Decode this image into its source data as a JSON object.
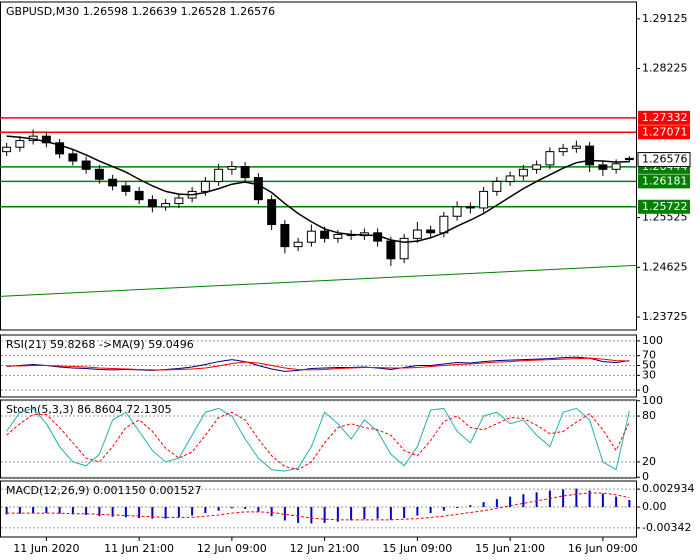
{
  "chart_data": [
    {
      "type": "candlestick",
      "title": "GBPUSD,M30  1.26598 1.26639 1.26528 1.26576",
      "categories": [
        null,
        null,
        null,
        "11 Jun 2020",
        null,
        null,
        null,
        null,
        null,
        null,
        "11 Jun 21:00",
        null,
        null,
        null,
        null,
        null,
        null,
        "12 Jun 09:00",
        null,
        null,
        null,
        null,
        null,
        null,
        "12 Jun 21:00",
        null,
        null,
        null,
        null,
        null,
        null,
        "15 Jun 09:00",
        null,
        null,
        null,
        null,
        null,
        null,
        "15 Jun 21:00",
        null,
        null,
        null,
        null,
        null,
        null,
        "16 Jun 09:00",
        null,
        null
      ],
      "open": [
        1.2672,
        1.268,
        1.2692,
        1.27,
        1.2688,
        1.2668,
        1.2655,
        1.264,
        1.2622,
        1.261,
        1.26,
        1.2585,
        1.2572,
        1.2578,
        1.2588,
        1.26,
        1.2618,
        1.264,
        1.2645,
        1.2625,
        1.2585,
        1.254,
        1.25,
        1.2508,
        1.2528,
        1.2515,
        1.2522,
        1.252,
        1.2525,
        1.251,
        1.2478,
        1.2515,
        1.253,
        1.2525,
        1.2555,
        1.2572,
        1.257,
        1.26,
        1.2618,
        1.2628,
        1.264,
        1.2648,
        1.2672,
        1.2678,
        1.2682,
        1.2648,
        1.264,
        1.26598
      ],
      "high": [
        1.2688,
        1.27,
        1.2712,
        1.2708,
        1.2695,
        1.2676,
        1.2663,
        1.2648,
        1.263,
        1.2618,
        1.2608,
        1.2593,
        1.2586,
        1.2596,
        1.2608,
        1.2626,
        1.265,
        1.2655,
        1.2653,
        1.2633,
        1.2593,
        1.2548,
        1.2516,
        1.254,
        1.2536,
        1.253,
        1.253,
        1.2533,
        1.2533,
        1.2518,
        1.2523,
        1.2545,
        1.2538,
        1.2563,
        1.2582,
        1.258,
        1.2608,
        1.2626,
        1.2636,
        1.2648,
        1.2656,
        1.268,
        1.2686,
        1.2692,
        1.269,
        1.2656,
        1.2658,
        1.26639
      ],
      "low": [
        1.2664,
        1.2672,
        1.2685,
        1.268,
        1.266,
        1.2647,
        1.2632,
        1.2614,
        1.2602,
        1.2592,
        1.2577,
        1.2562,
        1.2565,
        1.257,
        1.258,
        1.2592,
        1.261,
        1.263,
        1.2617,
        1.2577,
        1.253,
        1.2488,
        1.2492,
        1.25,
        1.2507,
        1.2507,
        1.2512,
        1.2512,
        1.25,
        1.2465,
        1.247,
        1.2507,
        1.2515,
        1.2517,
        1.2547,
        1.256,
        1.2562,
        1.2592,
        1.261,
        1.262,
        1.2632,
        1.264,
        1.2664,
        1.267,
        1.2635,
        1.2628,
        1.2632,
        1.26528
      ],
      "close": [
        1.268,
        1.2692,
        1.27,
        1.2688,
        1.2668,
        1.2655,
        1.264,
        1.2622,
        1.261,
        1.26,
        1.2585,
        1.2572,
        1.2578,
        1.2588,
        1.26,
        1.2618,
        1.264,
        1.2645,
        1.2625,
        1.2585,
        1.254,
        1.25,
        1.2508,
        1.2528,
        1.2515,
        1.2522,
        1.252,
        1.2525,
        1.251,
        1.2478,
        1.2515,
        1.253,
        1.2525,
        1.2555,
        1.2572,
        1.257,
        1.26,
        1.2618,
        1.2628,
        1.264,
        1.2648,
        1.2672,
        1.2678,
        1.2682,
        1.2648,
        1.264,
        1.265,
        1.26576
      ],
      "ma": {
        "color": "#000000",
        "values": [
          1.27,
          1.2698,
          1.2695,
          1.269,
          1.2684,
          1.2676,
          1.2666,
          1.2655,
          1.2645,
          1.2635,
          1.2622,
          1.261,
          1.26,
          1.2595,
          1.2594,
          1.2598,
          1.2605,
          1.2613,
          1.2617,
          1.2612,
          1.2598,
          1.2578,
          1.256,
          1.2545,
          1.2532,
          1.2525,
          1.2522,
          1.2521,
          1.252,
          1.2512,
          1.2508,
          1.251,
          1.2516,
          1.2525,
          1.2537,
          1.2548,
          1.256,
          1.2575,
          1.259,
          1.2605,
          1.2618,
          1.263,
          1.2642,
          1.2652,
          1.2656,
          1.2655,
          1.2653,
          1.2654
        ]
      },
      "levels": [
        {
          "value": 1.27332,
          "color": "#ff0000"
        },
        {
          "value": 1.27071,
          "color": "#ff0000"
        },
        {
          "value": 1.26444,
          "color": "#008000"
        },
        {
          "value": 1.26181,
          "color": "#008000"
        },
        {
          "value": 1.25722,
          "color": "#008000"
        }
      ],
      "trendline": {
        "values": [
          1.241,
          1.2466
        ],
        "color": "#008000"
      },
      "ylim": [
        1.2349,
        1.2943
      ],
      "yticks": [
        1.29125,
        1.28225,
        1.25525,
        1.24625,
        1.23725
      ]
    },
    {
      "type": "line",
      "title": "RSI(21) 59.8268 ->MA(9) 59.0496",
      "series": [
        {
          "color": "#000080",
          "values": [
            48,
            50,
            52,
            50,
            47,
            45,
            44,
            42,
            41,
            42,
            41,
            40,
            42,
            44,
            47,
            52,
            58,
            62,
            58,
            50,
            43,
            38,
            40,
            44,
            45,
            46,
            46,
            47,
            45,
            42,
            46,
            50,
            50,
            53,
            56,
            55,
            58,
            60,
            61,
            62,
            63,
            64,
            66,
            67,
            65,
            58,
            56,
            59.8268
          ]
        },
        {
          "color": "#ff0000",
          "values": [
            49,
            49,
            50,
            50,
            49,
            48,
            47,
            45,
            44,
            43,
            42,
            41,
            41,
            42,
            43,
            45,
            49,
            54,
            57,
            55,
            50,
            45,
            42,
            41,
            42,
            44,
            45,
            46,
            46,
            45,
            45,
            46,
            48,
            50,
            52,
            53,
            55,
            57,
            58,
            60,
            61,
            62,
            63,
            64,
            65,
            63,
            60,
            59.0496
          ]
        }
      ],
      "ylim": [
        -14,
        112
      ],
      "yticks": [
        100,
        70,
        50,
        30,
        0
      ]
    },
    {
      "type": "line",
      "title": "Stoch(5,3,3) 86.8604 72.1305",
      "series": [
        {
          "color": "#20b2aa",
          "values": [
            60,
            85,
            90,
            70,
            40,
            20,
            15,
            30,
            75,
            85,
            60,
            35,
            20,
            25,
            55,
            85,
            90,
            80,
            50,
            25,
            10,
            8,
            12,
            40,
            85,
            70,
            50,
            75,
            60,
            30,
            15,
            40,
            88,
            90,
            60,
            45,
            80,
            85,
            70,
            75,
            55,
            40,
            85,
            90,
            75,
            20,
            10,
            86.8604
          ]
        },
        {
          "color": "#ff0000",
          "dash": true,
          "values": [
            55,
            70,
            82,
            82,
            65,
            45,
            25,
            20,
            40,
            65,
            75,
            60,
            38,
            25,
            33,
            55,
            78,
            85,
            75,
            50,
            28,
            14,
            10,
            20,
            45,
            65,
            70,
            65,
            62,
            55,
            35,
            28,
            48,
            73,
            80,
            65,
            62,
            70,
            78,
            77,
            68,
            57,
            60,
            72,
            83,
            62,
            35,
            72.1305
          ]
        }
      ],
      "ylim": [
        -1,
        101
      ],
      "yticks": [
        100,
        80,
        20,
        0
      ]
    },
    {
      "type": "macd",
      "title": "MACD(12,26,9) 0.001150 0.001527",
      "series": [
        {
          "kind": "bar",
          "color": "#0000cd",
          "values": [
            -0.0012,
            -0.0011,
            -0.001,
            -0.001,
            -0.0011,
            -0.0012,
            -0.0013,
            -0.0015,
            -0.0016,
            -0.0017,
            -0.0018,
            -0.0019,
            -0.0019,
            -0.0017,
            -0.0014,
            -0.001,
            -0.0006,
            -0.0002,
            -0.0003,
            -0.0008,
            -0.0015,
            -0.0022,
            -0.0026,
            -0.0027,
            -0.0026,
            -0.0024,
            -0.0022,
            -0.002,
            -0.0019,
            -0.0021,
            -0.0018,
            -0.0014,
            -0.001,
            -0.0006,
            -0.0001,
            0.0003,
            0.0008,
            0.0013,
            0.0017,
            0.0021,
            0.0024,
            0.0027,
            0.0029,
            0.003,
            0.0027,
            0.0022,
            0.0017,
            0.00115
          ]
        },
        {
          "kind": "line",
          "color": "#ff0000",
          "dash": true,
          "values": [
            -0.001,
            -0.001,
            -0.001,
            -0.001,
            -0.001,
            -0.0011,
            -0.0011,
            -0.0012,
            -0.0013,
            -0.0014,
            -0.0015,
            -0.0016,
            -0.0017,
            -0.0017,
            -0.0017,
            -0.0015,
            -0.0013,
            -0.001,
            -0.0008,
            -0.0008,
            -0.0009,
            -0.0012,
            -0.0015,
            -0.0018,
            -0.002,
            -0.0021,
            -0.0021,
            -0.0021,
            -0.0021,
            -0.0021,
            -0.002,
            -0.0019,
            -0.0017,
            -0.0015,
            -0.0012,
            -0.0009,
            -0.0006,
            -0.0002,
            0.0002,
            0.0006,
            0.001,
            0.0014,
            0.0018,
            0.0021,
            0.0023,
            0.0023,
            0.002,
            0.001527
          ]
        }
      ],
      "ylim": [
        -0.00491,
        0.00426
      ],
      "yticks": [
        0.002934,
        {
          "value": 0,
          "label": "0.00"
        },
        -0.00342
      ]
    }
  ]
}
